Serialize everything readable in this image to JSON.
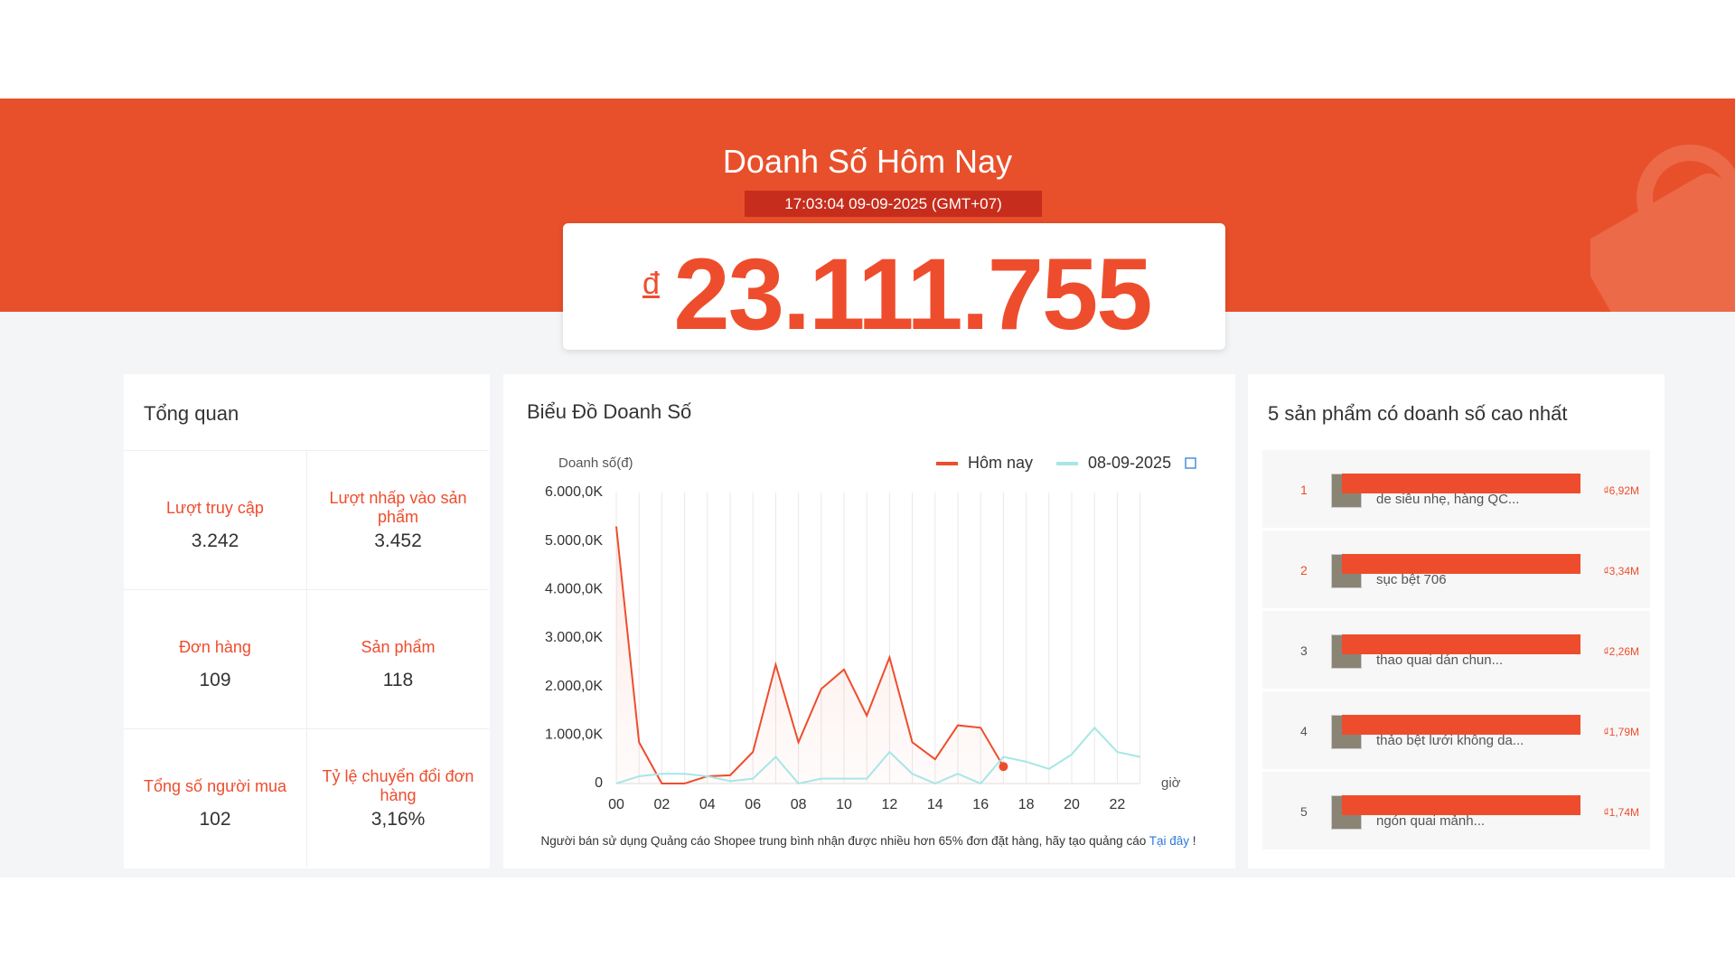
{
  "header": {
    "title": "Doanh Số Hôm Nay",
    "timestamp": "17:03:04 09-09-2025 (GMT+07)",
    "currency": "đ",
    "total": "23.111.755"
  },
  "overview": {
    "title": "Tổng quan",
    "cells": [
      {
        "label": "Lượt truy cập",
        "value": "3.242"
      },
      {
        "label": "Lượt nhấp vào sản phẩm",
        "value": "3.452"
      },
      {
        "label": "Đơn hàng",
        "value": "109"
      },
      {
        "label": "Sản phẩm",
        "value": "118"
      },
      {
        "label": "Tổng số người mua",
        "value": "102"
      },
      {
        "label": "Tỷ lệ chuyển đổi đơn hàng",
        "value": "3,16%"
      }
    ]
  },
  "chart_data": {
    "type": "line",
    "title": "Biểu Đồ Doanh Số",
    "y_label": "Doanh số(đ)",
    "x_label": "giờ",
    "categories": [
      "00",
      null,
      "02",
      null,
      "04",
      null,
      "06",
      null,
      "08",
      null,
      "10",
      null,
      "12",
      null,
      "14",
      null,
      "16",
      null,
      "18",
      null,
      "20",
      null,
      "22",
      null
    ],
    "series": [
      {
        "name": "Hôm nay",
        "color": "#ee4d2d",
        "values": [
          5300,
          850,
          0,
          0,
          150,
          170,
          650,
          2450,
          850,
          1950,
          2350,
          1400,
          2600,
          850,
          500,
          1200,
          1150,
          350,
          null,
          null,
          null,
          null,
          null,
          null
        ]
      },
      {
        "name": "08-09-2025",
        "color": "#a8e6e6",
        "values": [
          0,
          150,
          200,
          200,
          150,
          50,
          100,
          550,
          0,
          100,
          100,
          100,
          650,
          200,
          0,
          200,
          0,
          550,
          450,
          300,
          600,
          1150,
          650,
          550
        ]
      }
    ],
    "ylim": [
      0,
      6000
    ],
    "yticks": [
      0,
      {
        "value": 1000,
        "label": "1.000,0K"
      },
      {
        "value": 2000,
        "label": "2.000,0K"
      },
      {
        "value": 3000,
        "label": "3.000,0K"
      },
      {
        "value": 4000,
        "label": "4.000,0K"
      },
      {
        "value": 5000,
        "label": "5.000,0K"
      },
      {
        "value": 6000,
        "label": "6.000,0K"
      }
    ],
    "grid": true,
    "legend": "top-right",
    "note": "Người bán sử dụng Quảng cáo Shopee trung bình nhận được nhiều hơn 65% đơn đặt hàng, hãy tạo quảng cáo",
    "note_link": "Tại đây",
    "note_end": "!"
  },
  "top_products": {
    "title": "5 sản phẩm có doanh số cao nhất",
    "items": [
      {
        "rank": "1",
        "name": "de siêu nhẹ, hàng QC...",
        "value": "₫6,92M"
      },
      {
        "rank": "2",
        "name": "sục bệt 706",
        "value": "₫3,34M"
      },
      {
        "rank": "3",
        "name": "thao quai dán chun...",
        "value": "₫2,26M"
      },
      {
        "rank": "4",
        "name": "thảo bệt lưới không da...",
        "value": "₫1,79M"
      },
      {
        "rank": "5",
        "name": "ngón quai mảnh...",
        "value": "₫1,74M"
      }
    ]
  }
}
